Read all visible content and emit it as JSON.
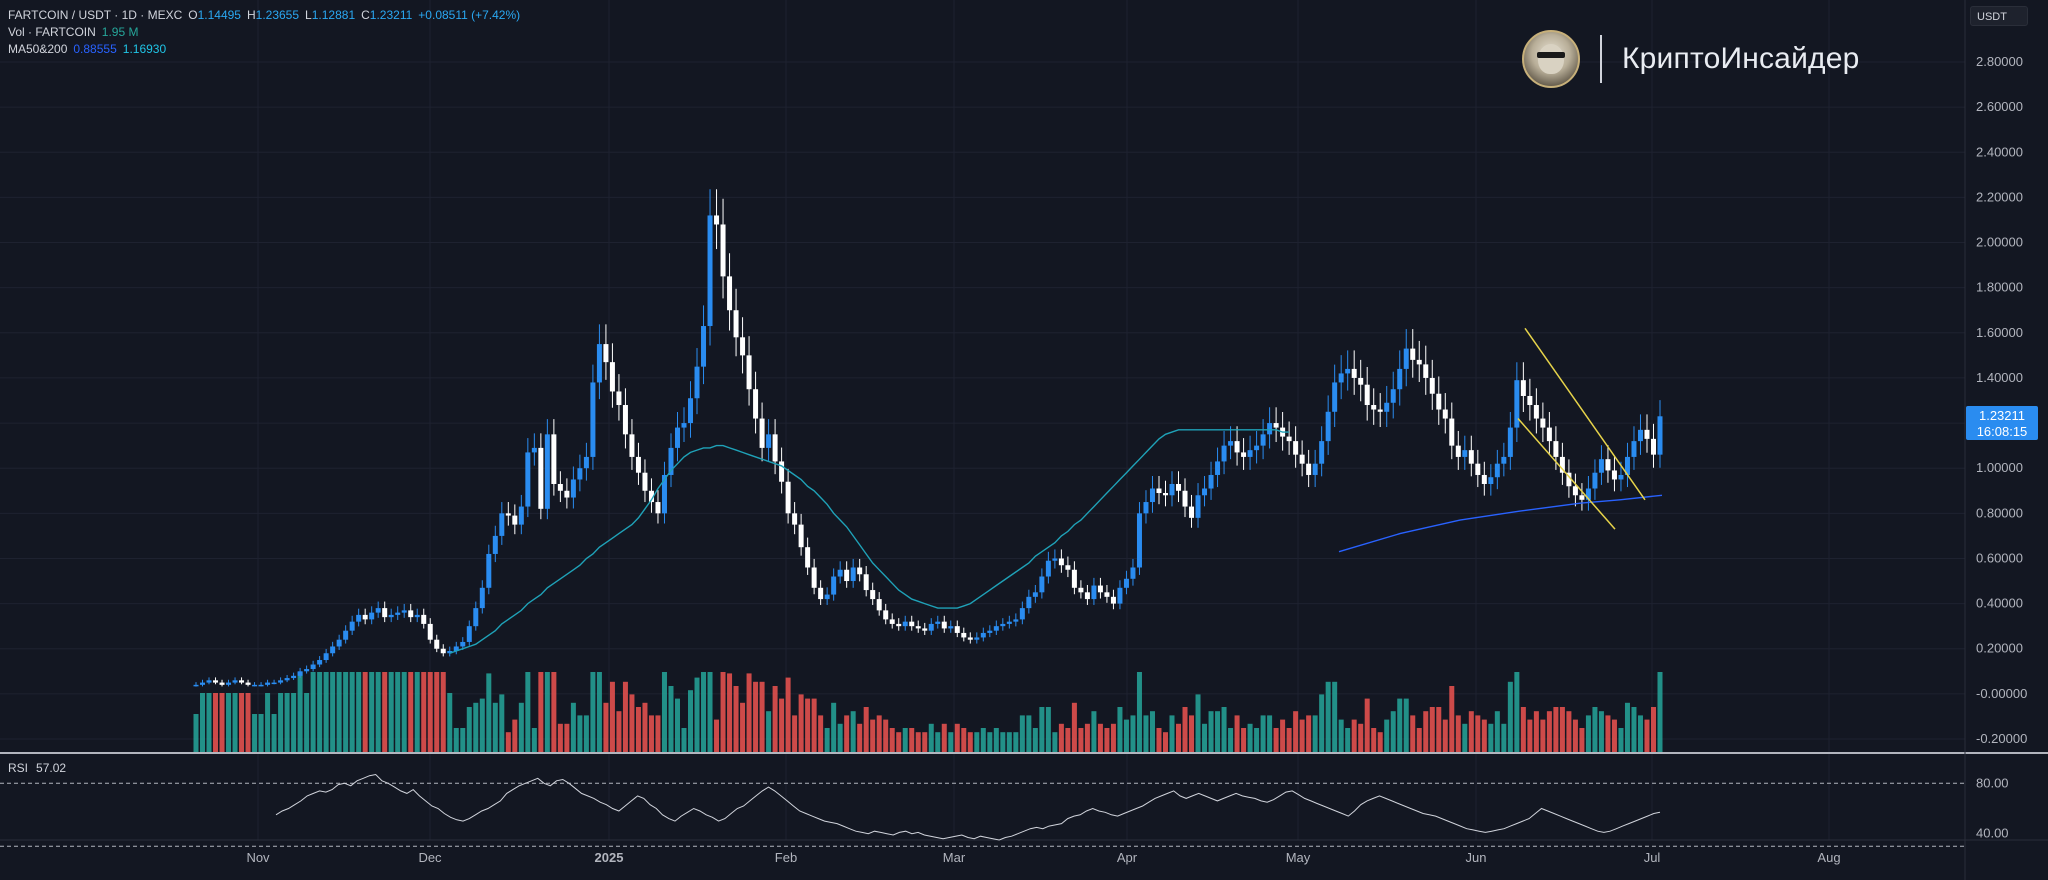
{
  "legend": {
    "symbol": "FARTCOIN / USDT · 1D · MEXC",
    "o_label": "O",
    "o_value": "1.14495",
    "h_label": "H",
    "h_value": "1.23655",
    "l_label": "L",
    "l_value": "1.12881",
    "c_label": "C",
    "c_value": "1.23211",
    "change": "+0.08511 (+7.42%)",
    "vol_label": "Vol · FARTCOIN",
    "vol_value": "1.95 M",
    "ma_label": "MA50&200",
    "ma50_value": "0.88555",
    "ma200_value": "1.16930"
  },
  "rsi": {
    "label": "RSI",
    "value": "57.02"
  },
  "currency": "USDT",
  "last_price": {
    "price": "1.23211",
    "countdown": "16:08:15"
  },
  "brand": {
    "name": "КриптоИнсайдер"
  },
  "colors": {
    "background": "#131722",
    "up": "#2a8cf0",
    "down": "#ffffff",
    "vol_up": "#26a69a",
    "vol_down": "#ef5350",
    "ma50": "#1fa2b8",
    "ma200": "#2962ff",
    "trendline": "#e6d34a",
    "rsi_line": "#d1d4dc"
  },
  "chart_data": {
    "type": "candlestick",
    "y_ticks": [
      "2.80000",
      "2.60000",
      "2.40000",
      "2.20000",
      "2.00000",
      "1.80000",
      "1.60000",
      "1.40000",
      "1.20000",
      "1.00000",
      "0.80000",
      "0.60000",
      "0.40000",
      "0.20000",
      "-0.00000",
      "-0.20000"
    ],
    "ylim": [
      -0.2,
      2.9
    ],
    "x_labels": [
      "Nov",
      "Dec",
      "2025",
      "Feb",
      "Mar",
      "Apr",
      "May",
      "Jun",
      "Jul",
      "Aug"
    ],
    "close_series_start": "2024-10-22",
    "close": [
      0.04,
      0.05,
      0.06,
      0.05,
      0.04,
      0.05,
      0.06,
      0.05,
      0.04,
      0.04,
      0.04,
      0.05,
      0.05,
      0.06,
      0.07,
      0.08,
      0.1,
      0.11,
      0.13,
      0.15,
      0.18,
      0.21,
      0.24,
      0.28,
      0.32,
      0.35,
      0.33,
      0.36,
      0.38,
      0.34,
      0.35,
      0.36,
      0.37,
      0.34,
      0.35,
      0.31,
      0.24,
      0.2,
      0.18,
      0.19,
      0.21,
      0.23,
      0.3,
      0.38,
      0.47,
      0.62,
      0.7,
      0.8,
      0.79,
      0.75,
      0.83,
      1.07,
      1.09,
      0.82,
      1.15,
      0.93,
      0.9,
      0.87,
      0.95,
      1.0,
      1.05,
      1.38,
      1.55,
      1.47,
      1.34,
      1.28,
      1.15,
      1.05,
      0.98,
      0.9,
      0.85,
      0.8,
      0.97,
      1.09,
      1.18,
      1.2,
      1.31,
      1.45,
      1.63,
      2.12,
      2.08,
      1.85,
      1.7,
      1.58,
      1.5,
      1.35,
      1.22,
      1.09,
      1.15,
      1.03,
      0.94,
      0.8,
      0.75,
      0.65,
      0.56,
      0.47,
      0.42,
      0.44,
      0.52,
      0.55,
      0.5,
      0.56,
      0.53,
      0.46,
      0.42,
      0.37,
      0.33,
      0.31,
      0.3,
      0.32,
      0.3,
      0.29,
      0.28,
      0.31,
      0.32,
      0.29,
      0.3,
      0.27,
      0.25,
      0.24,
      0.25,
      0.27,
      0.28,
      0.3,
      0.31,
      0.32,
      0.33,
      0.38,
      0.43,
      0.45,
      0.52,
      0.59,
      0.6,
      0.57,
      0.55,
      0.47,
      0.45,
      0.42,
      0.48,
      0.45,
      0.43,
      0.4,
      0.47,
      0.51,
      0.56,
      0.8,
      0.85,
      0.91,
      0.89,
      0.88,
      0.93,
      0.9,
      0.83,
      0.78,
      0.88,
      0.91,
      0.97,
      1.03,
      1.1,
      1.12,
      1.07,
      1.05,
      1.08,
      1.1,
      1.15,
      1.2,
      1.18,
      1.14,
      1.12,
      1.06,
      1.02,
      0.97,
      1.02,
      1.12,
      1.25,
      1.38,
      1.42,
      1.44,
      1.4,
      1.37,
      1.28,
      1.26,
      1.25,
      1.29,
      1.35,
      1.44,
      1.53,
      1.48,
      1.46,
      1.4,
      1.33,
      1.26,
      1.22,
      1.1,
      1.05,
      1.08,
      1.02,
      0.97,
      0.93,
      0.96,
      1.02,
      1.05,
      1.18,
      1.39,
      1.32,
      1.28,
      1.22,
      1.18,
      1.12,
      1.05,
      0.98,
      0.92,
      0.88,
      0.86,
      0.91,
      0.98,
      1.04,
      0.99,
      0.95,
      0.97,
      1.05,
      1.12,
      1.17,
      1.13,
      1.06,
      1.23
    ],
    "ma50": [
      null,
      null,
      null,
      null,
      null,
      null,
      null,
      null,
      null,
      null,
      null,
      null,
      null,
      null,
      null,
      null,
      null,
      null,
      null,
      null,
      null,
      null,
      null,
      null,
      null,
      null,
      null,
      null,
      null,
      null,
      null,
      null,
      null,
      null,
      null,
      null,
      null,
      null,
      null,
      0.18,
      0.19,
      0.2,
      0.21,
      0.22,
      0.24,
      0.26,
      0.28,
      0.31,
      0.33,
      0.35,
      0.37,
      0.4,
      0.42,
      0.44,
      0.47,
      0.49,
      0.51,
      0.53,
      0.55,
      0.57,
      0.6,
      0.62,
      0.65,
      0.67,
      0.69,
      0.71,
      0.73,
      0.75,
      0.78,
      0.82,
      0.86,
      0.91,
      0.95,
      0.99,
      1.02,
      1.05,
      1.07,
      1.08,
      1.09,
      1.09,
      1.1,
      1.1,
      1.09,
      1.08,
      1.07,
      1.06,
      1.05,
      1.04,
      1.03,
      1.02,
      1.01,
      0.99,
      0.97,
      0.95,
      0.92,
      0.9,
      0.87,
      0.84,
      0.8,
      0.77,
      0.74,
      0.7,
      0.66,
      0.62,
      0.58,
      0.55,
      0.52,
      0.49,
      0.46,
      0.44,
      0.42,
      0.41,
      0.4,
      0.39,
      0.38,
      0.38,
      0.38,
      0.38,
      0.39,
      0.4,
      0.42,
      0.44,
      0.46,
      0.48,
      0.5,
      0.52,
      0.54,
      0.56,
      0.58,
      0.61,
      0.63,
      0.65,
      0.67,
      0.7,
      0.72,
      0.75,
      0.77,
      0.8,
      0.83,
      0.86,
      0.89,
      0.92,
      0.95,
      0.98,
      1.01,
      1.04,
      1.07,
      1.1,
      1.13,
      1.15,
      1.16,
      1.17,
      1.17,
      1.17,
      1.17,
      1.17,
      1.17,
      1.17,
      1.17,
      1.17,
      1.17,
      1.17,
      1.17,
      1.17,
      1.17,
      1.17,
      1.17,
      1.16,
      1.16
    ],
    "ma200_points": [
      [
        1339,
        0.63
      ],
      [
        1400,
        0.71
      ],
      [
        1460,
        0.77
      ],
      [
        1520,
        0.81
      ],
      [
        1580,
        0.845
      ],
      [
        1620,
        0.86
      ],
      [
        1662,
        0.88
      ]
    ],
    "trendlines": [
      {
        "from": [
          1525,
          1.62
        ],
        "to": [
          1645,
          0.86
        ]
      },
      {
        "from": [
          1518,
          1.22
        ],
        "to": [
          1615,
          0.73
        ]
      }
    ],
    "volume_max": 1.0,
    "rsi_levels": [
      "80.00",
      "40.00"
    ],
    "rsi": [
      55,
      58,
      60,
      63,
      66,
      70,
      72,
      74,
      73,
      75,
      79,
      80,
      78,
      82,
      84,
      86,
      87,
      82,
      80,
      77,
      74,
      72,
      75,
      70,
      66,
      62,
      60,
      56,
      53,
      51,
      50,
      52,
      55,
      58,
      60,
      63,
      66,
      72,
      75,
      78,
      80,
      82,
      84,
      80,
      78,
      82,
      83,
      80,
      76,
      72,
      70,
      68,
      65,
      63,
      60,
      58,
      62,
      66,
      70,
      68,
      63,
      60,
      55,
      52,
      50,
      54,
      57,
      60,
      58,
      55,
      53,
      50,
      52,
      56,
      60,
      62,
      66,
      70,
      74,
      77,
      74,
      70,
      66,
      62,
      58,
      56,
      54,
      52,
      50,
      49,
      48,
      46,
      44,
      42,
      41,
      40,
      42,
      41,
      40,
      39,
      41,
      42,
      40,
      41,
      39,
      38,
      37,
      36,
      37,
      38,
      39,
      37,
      36,
      38,
      37,
      36,
      35,
      37,
      38,
      40,
      42,
      44,
      45,
      44,
      46,
      47,
      48,
      52,
      54,
      55,
      58,
      60,
      58,
      57,
      55,
      54,
      56,
      58,
      60,
      62,
      65,
      68,
      70,
      72,
      74,
      70,
      68,
      70,
      72,
      70,
      68,
      66,
      68,
      70,
      72,
      70,
      69,
      68,
      66,
      65,
      67,
      70,
      73,
      74,
      71,
      68,
      66,
      64,
      62,
      60,
      58,
      56,
      54,
      58,
      63,
      66,
      68,
      70,
      68,
      66,
      64,
      62,
      60,
      58,
      56,
      55,
      54,
      52,
      50,
      48,
      46,
      44,
      43,
      42,
      41,
      42,
      43,
      44,
      46,
      48,
      50,
      52,
      56,
      60,
      58,
      56,
      54,
      52,
      50,
      48,
      46,
      44,
      42,
      41,
      42,
      44,
      46,
      48,
      50,
      52,
      54,
      56,
      57
    ]
  }
}
